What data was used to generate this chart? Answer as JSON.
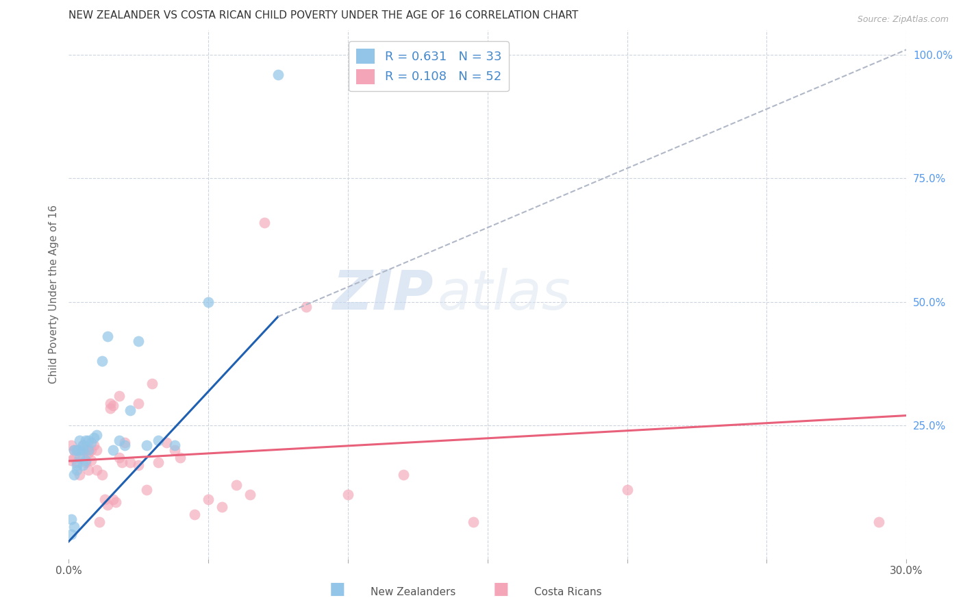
{
  "title": "NEW ZEALANDER VS COSTA RICAN CHILD POVERTY UNDER THE AGE OF 16 CORRELATION CHART",
  "source": "Source: ZipAtlas.com",
  "ylabel": "Child Poverty Under the Age of 16",
  "xlim": [
    0.0,
    0.3
  ],
  "ylim": [
    -0.02,
    1.05
  ],
  "xticks": [
    0.0,
    0.05,
    0.1,
    0.15,
    0.2,
    0.25,
    0.3
  ],
  "xticklabels": [
    "0.0%",
    "",
    "",
    "",
    "",
    "",
    "30.0%"
  ],
  "yticks_right": [
    0.25,
    0.5,
    0.75,
    1.0
  ],
  "ytick_labels_right": [
    "25.0%",
    "50.0%",
    "75.0%",
    "100.0%"
  ],
  "blue_R": 0.631,
  "blue_N": 33,
  "pink_R": 0.108,
  "pink_N": 52,
  "blue_color": "#92c5e8",
  "pink_color": "#f4a6b8",
  "blue_line_color": "#2060b0",
  "pink_line_color": "#e8607a",
  "dashed_line_color": "#b0b8c8",
  "legend_label_blue": "New Zealanders",
  "legend_label_pink": "Costa Ricans",
  "watermark_zip": "ZIP",
  "watermark_atlas": "atlas",
  "background_color": "#ffffff",
  "grid_color": "#ccd4e0",
  "title_color": "#333333",
  "axis_label_color": "#666666",
  "blue_scatter_x": [
    0.001,
    0.001,
    0.002,
    0.002,
    0.002,
    0.003,
    0.003,
    0.003,
    0.004,
    0.004,
    0.004,
    0.005,
    0.005,
    0.005,
    0.006,
    0.006,
    0.007,
    0.007,
    0.008,
    0.009,
    0.01,
    0.012,
    0.014,
    0.016,
    0.018,
    0.02,
    0.022,
    0.025,
    0.028,
    0.032,
    0.038,
    0.05,
    0.075
  ],
  "blue_scatter_y": [
    0.03,
    0.06,
    0.045,
    0.15,
    0.2,
    0.17,
    0.2,
    0.16,
    0.185,
    0.22,
    0.2,
    0.21,
    0.17,
    0.2,
    0.22,
    0.18,
    0.2,
    0.22,
    0.215,
    0.225,
    0.23,
    0.38,
    0.43,
    0.2,
    0.22,
    0.21,
    0.28,
    0.42,
    0.21,
    0.22,
    0.21,
    0.5,
    0.96
  ],
  "pink_scatter_x": [
    0.001,
    0.001,
    0.002,
    0.002,
    0.003,
    0.003,
    0.004,
    0.005,
    0.005,
    0.006,
    0.006,
    0.007,
    0.007,
    0.008,
    0.008,
    0.009,
    0.01,
    0.01,
    0.011,
    0.012,
    0.013,
    0.014,
    0.015,
    0.015,
    0.016,
    0.016,
    0.017,
    0.018,
    0.018,
    0.019,
    0.02,
    0.022,
    0.025,
    0.025,
    0.028,
    0.03,
    0.032,
    0.035,
    0.038,
    0.04,
    0.045,
    0.05,
    0.055,
    0.06,
    0.065,
    0.07,
    0.085,
    0.1,
    0.12,
    0.145,
    0.2,
    0.29
  ],
  "pink_scatter_y": [
    0.18,
    0.21,
    0.185,
    0.2,
    0.175,
    0.2,
    0.15,
    0.19,
    0.21,
    0.175,
    0.2,
    0.16,
    0.195,
    0.18,
    0.2,
    0.21,
    0.16,
    0.2,
    0.055,
    0.15,
    0.1,
    0.09,
    0.295,
    0.285,
    0.1,
    0.29,
    0.095,
    0.185,
    0.31,
    0.175,
    0.215,
    0.175,
    0.17,
    0.295,
    0.12,
    0.335,
    0.175,
    0.215,
    0.2,
    0.185,
    0.07,
    0.1,
    0.085,
    0.13,
    0.11,
    0.66,
    0.49,
    0.11,
    0.15,
    0.055,
    0.12,
    0.055
  ],
  "blue_line_x0": 0.0,
  "blue_line_x1": 0.075,
  "blue_line_y0": 0.015,
  "blue_line_y1": 0.47,
  "dashed_line_x0": 0.075,
  "dashed_line_x1": 0.3,
  "dashed_line_y0": 0.47,
  "dashed_line_y1": 1.01,
  "pink_line_x0": 0.0,
  "pink_line_x1": 0.3,
  "pink_line_y0": 0.178,
  "pink_line_y1": 0.27
}
